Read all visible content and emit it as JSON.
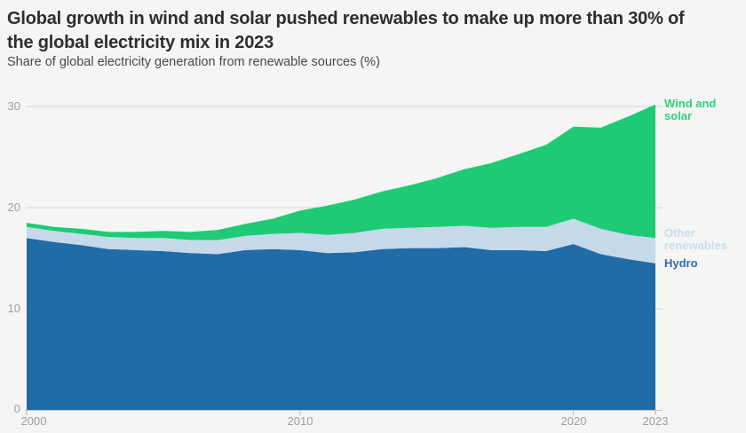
{
  "header": {
    "title_line1": "Global growth in wind and solar pushed renewables to make up more than 30% of",
    "title_line2": "the global electricity mix in 2023",
    "subtitle": "Share of global electricity generation from renewable sources (%)"
  },
  "chart_data": {
    "type": "area",
    "stacked": true,
    "title": "Global growth in wind and solar pushed renewables to make up more than 30% of the global electricity mix in 2023",
    "ylabel": "Share of global electricity generation from renewable sources (%)",
    "x": [
      2000,
      2001,
      2002,
      2003,
      2004,
      2005,
      2006,
      2007,
      2008,
      2009,
      2010,
      2011,
      2012,
      2013,
      2014,
      2015,
      2016,
      2017,
      2018,
      2019,
      2020,
      2021,
      2022,
      2023
    ],
    "series": [
      {
        "name": "Hydro",
        "color": "#216ba6",
        "values": [
          17.0,
          16.6,
          16.3,
          15.9,
          15.8,
          15.7,
          15.5,
          15.4,
          15.8,
          15.9,
          15.8,
          15.5,
          15.6,
          15.9,
          16.0,
          16.0,
          16.1,
          15.8,
          15.8,
          15.7,
          16.4,
          15.4,
          14.9,
          14.5
        ]
      },
      {
        "name": "Other renewables",
        "color": "#c5d9ea",
        "values": [
          1.1,
          1.1,
          1.1,
          1.2,
          1.2,
          1.3,
          1.3,
          1.4,
          1.4,
          1.5,
          1.7,
          1.8,
          1.9,
          2.0,
          2.0,
          2.1,
          2.1,
          2.2,
          2.3,
          2.4,
          2.5,
          2.5,
          2.4,
          2.5
        ]
      },
      {
        "name": "Wind and solar",
        "color": "#1ecb74",
        "values": [
          0.4,
          0.4,
          0.5,
          0.5,
          0.6,
          0.7,
          0.8,
          1.0,
          1.2,
          1.5,
          2.2,
          2.9,
          3.3,
          3.7,
          4.2,
          4.8,
          5.6,
          6.4,
          7.2,
          8.1,
          9.1,
          10.0,
          11.7,
          13.2
        ]
      }
    ],
    "total_2023": 30.2,
    "yticks": [
      0,
      10,
      20,
      30
    ],
    "xticks": [
      2000,
      2010,
      2020,
      2023
    ],
    "ylim": [
      0,
      31
    ],
    "grid": "horizontal",
    "legend_position": "right",
    "legend_text_colors": {
      "wind_solar": "#2cd27d",
      "other": "#c9dcee",
      "hydro": "#2f6da8"
    }
  }
}
